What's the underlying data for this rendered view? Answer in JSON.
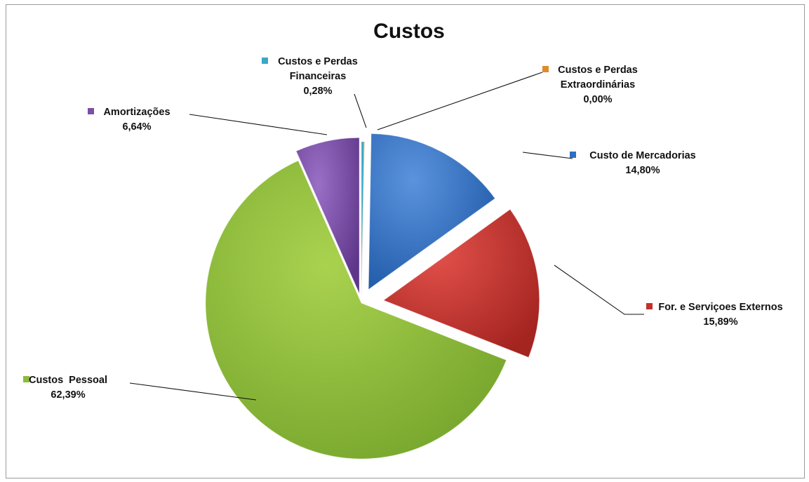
{
  "chart_data": {
    "type": "pie",
    "title": "Custos",
    "slices": [
      {
        "name": "Custo de Mercadorias",
        "value_label": "14,80%",
        "value": 14.8,
        "color": "#2f6fc1"
      },
      {
        "name": "For. e Serviçoes Externos",
        "value_label": "15,89%",
        "value": 15.89,
        "color": "#c4302b"
      },
      {
        "name": "Custos  Pessoal",
        "value_label": "62,39%",
        "value": 62.39,
        "color": "#8dbb3a"
      },
      {
        "name": "Amortizações",
        "value_label": "6,64%",
        "value": 6.64,
        "color": "#7b4fa6"
      },
      {
        "name": "Custos e Perdas Financeiras",
        "name_lines": [
          "Custos e Perdas",
          "Financeiras"
        ],
        "value_label": "0,28%",
        "value": 0.28,
        "color": "#3aa7c8"
      },
      {
        "name": "Custos e Perdas Extraordinárias",
        "name_lines": [
          "Custos e Perdas",
          "Extraordinárias"
        ],
        "value_label": "0,00%",
        "value": 0.0,
        "color": "#e08a2a"
      }
    ],
    "exploded": true,
    "legend": "none"
  }
}
